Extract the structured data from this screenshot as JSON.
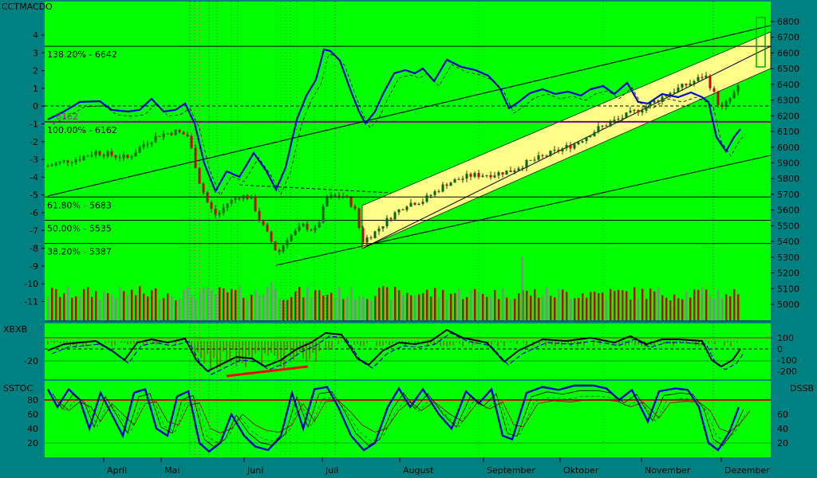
{
  "chart_data": [
    {
      "type": "candlestick",
      "panel": "price",
      "title": "CCTMACDO",
      "y_left_ticks": [
        4,
        3,
        2,
        1,
        0,
        -1,
        -2,
        -3,
        -4,
        -5,
        -6,
        -7,
        -8,
        -9,
        -10,
        -11
      ],
      "y_right_ticks": [
        6800,
        6700,
        6600,
        6500,
        6400,
        6300,
        6200,
        6100,
        6000,
        5900,
        5800,
        5700,
        5600,
        5500,
        5400,
        5300,
        5200,
        5100,
        5000
      ],
      "ylim": [
        4900,
        6850
      ],
      "fib_levels": [
        {
          "label": "138.20% - 6642",
          "value": 6642
        },
        {
          "label": "100.00% - 6162",
          "value": 6162
        },
        {
          "label": "61.80% - 5683",
          "value": 5683
        },
        {
          "label": "50.00% - 5535",
          "value": 5535
        },
        {
          "label": "38.20% - 5387",
          "value": 5387
        }
      ],
      "price_marker": {
        "label": "6162",
        "color": "#cc00cc"
      },
      "x_months": [
        "April",
        "Mai",
        "Juni",
        "Juli",
        "August",
        "September",
        "Oktober",
        "November",
        "Dezember"
      ]
    },
    {
      "type": "oscillator",
      "panel": "XBXB",
      "label": "XBXB",
      "left_ticks": [
        "-20"
      ],
      "right_ticks": [
        "100",
        "0",
        "-100",
        "-200"
      ]
    },
    {
      "type": "oscillator",
      "panel": "SSTOC",
      "label": "SSTOC",
      "right_label": "DSSB",
      "left_ticks": [
        "80",
        "60",
        "40",
        "20"
      ],
      "right_ticks": [
        "60",
        "40",
        "20"
      ]
    }
  ],
  "colors": {
    "background": "#008080",
    "plot": "#00ff00",
    "macd": "#0000cc",
    "candle_up": "#006400",
    "candle_down": "#cc0000",
    "channel": "#ffff88",
    "fib": "#000000",
    "marker": "#800080"
  }
}
